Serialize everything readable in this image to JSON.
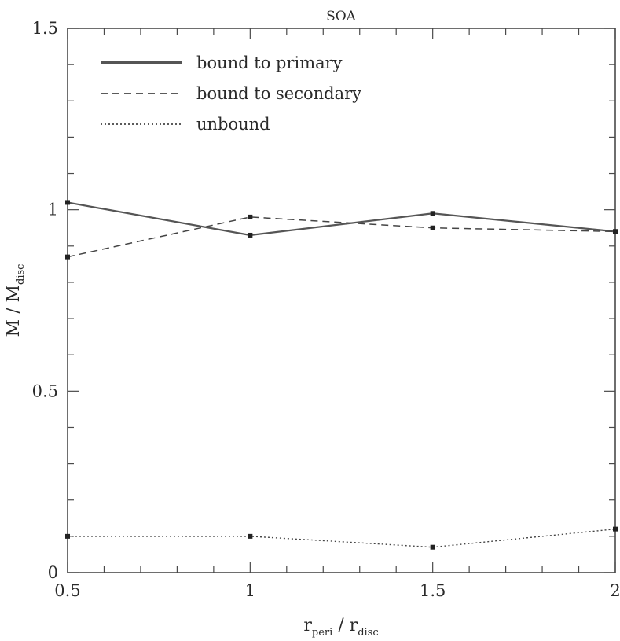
{
  "chart_data": {
    "type": "line",
    "title": "SOA",
    "xlabel": {
      "main": "r",
      "sub": "peri",
      "sep": " / ",
      "main2": "r",
      "sub2": "disc"
    },
    "ylabel": {
      "main": "M",
      "sep": " / ",
      "main2": "M",
      "sub2": "disc"
    },
    "xlim": [
      0.5,
      2
    ],
    "ylim": [
      0,
      1.5
    ],
    "x_ticks": [
      0.5,
      1,
      1.5,
      2
    ],
    "x_tick_labels": [
      "0.5",
      "1",
      "1.5",
      "2"
    ],
    "y_ticks": [
      0,
      0.5,
      1,
      1.5
    ],
    "y_tick_labels": [
      "0",
      "0.5",
      "1",
      "1.5"
    ],
    "legend_position": "top-left",
    "series": [
      {
        "name": "bound to primary",
        "style": "solid",
        "color": "#555555",
        "x": [
          0.5,
          1,
          1.5,
          2
        ],
        "y": [
          1.02,
          0.93,
          0.99,
          0.94
        ]
      },
      {
        "name": "bound to secondary",
        "style": "dashed",
        "color": "#444444",
        "x": [
          0.5,
          1,
          1.5,
          2
        ],
        "y": [
          0.87,
          0.98,
          0.95,
          0.94
        ]
      },
      {
        "name": "unbound",
        "style": "dotted",
        "color": "#444444",
        "x": [
          0.5,
          1,
          1.5,
          2
        ],
        "y": [
          0.1,
          0.1,
          0.07,
          0.12
        ]
      }
    ]
  }
}
